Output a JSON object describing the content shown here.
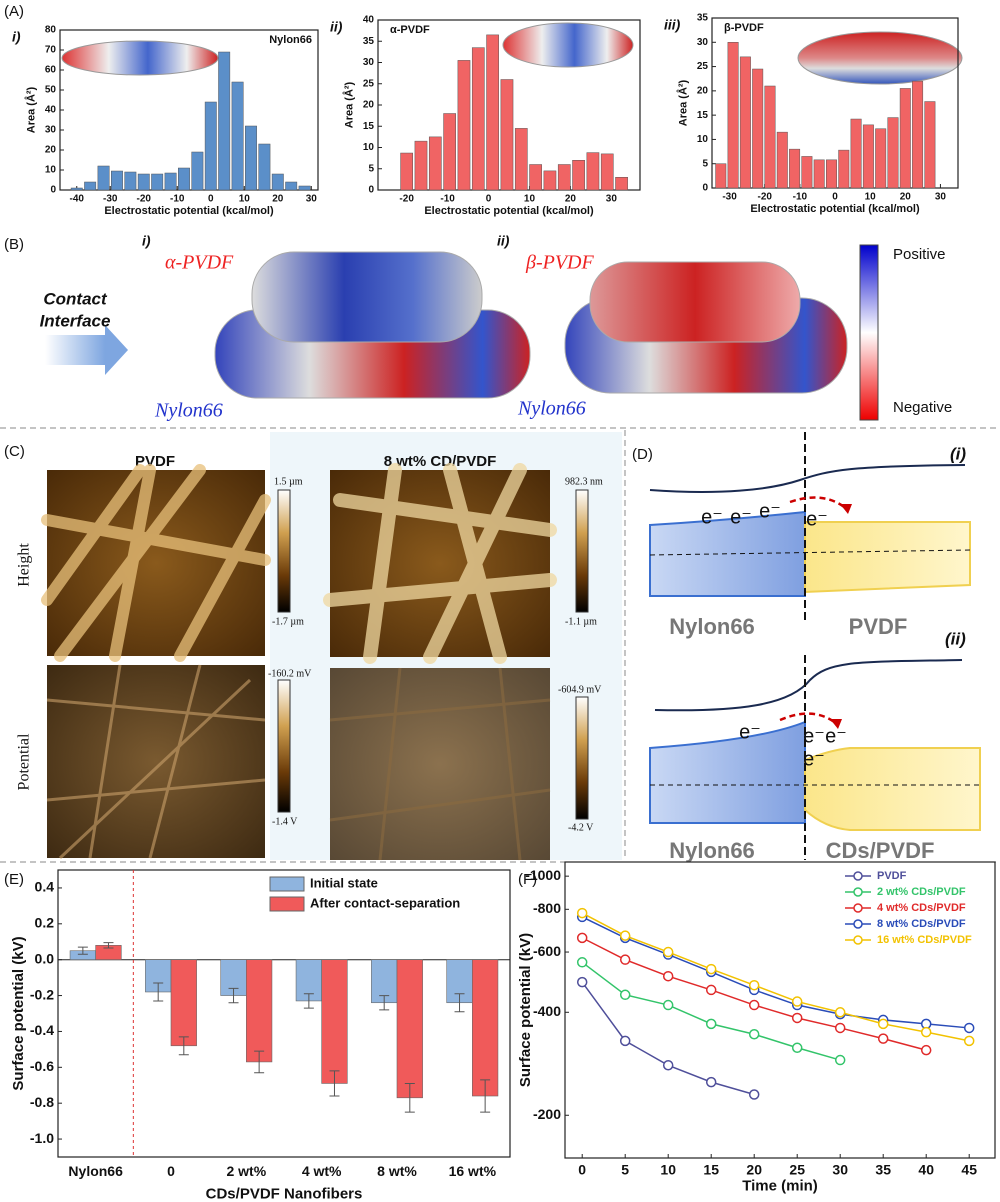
{
  "chart_data": [
    {
      "type": "bar",
      "label": "i)",
      "title": "Nylon66",
      "x": [
        -40,
        -36,
        -32,
        -28,
        -24,
        -20,
        -16,
        -12,
        -8,
        -4,
        0,
        4,
        8,
        12,
        16,
        20,
        24,
        28
      ],
      "values": [
        1,
        4,
        12,
        9.5,
        9,
        8,
        8,
        8.5,
        11,
        19,
        44,
        69,
        54,
        32,
        23,
        8,
        4,
        2
      ],
      "color": "#5b8fc9",
      "xlabel": "Electrostatic potential (kcal/mol)",
      "ylabel": "Area (Å²)",
      "xlim": [
        -45,
        32
      ],
      "ylim": [
        0,
        80
      ],
      "xticks": [
        -40,
        -30,
        -20,
        -10,
        0,
        10,
        20,
        30
      ],
      "yticks": [
        0,
        10,
        20,
        30,
        40,
        50,
        60,
        70,
        80
      ]
    },
    {
      "type": "bar",
      "label": "ii)",
      "title": "α-PVDF",
      "x": [
        -20,
        -16.5,
        -13,
        -9.5,
        -6,
        -2.5,
        1,
        4.5,
        8,
        11.5,
        15,
        18.5,
        22,
        25.5,
        29,
        32.5
      ],
      "values": [
        8.7,
        11.5,
        12.5,
        18,
        30.5,
        33.5,
        36.5,
        26,
        14.5,
        6,
        4.5,
        6,
        7,
        8.8,
        8.5,
        3
      ],
      "color": "#f06464",
      "xlabel": "Electrostatic potential (kcal/mol)",
      "ylabel": "Area (Å²)",
      "xlim": [
        -27,
        37
      ],
      "ylim": [
        0,
        40
      ],
      "xticks": [
        -20,
        -10,
        0,
        10,
        20,
        30
      ],
      "yticks": [
        0,
        5,
        10,
        15,
        20,
        25,
        30,
        35,
        40
      ]
    },
    {
      "type": "bar",
      "label": "iii)",
      "title": "β-PVDF",
      "x": [
        -32.5,
        -29,
        -25.5,
        -22,
        -18.5,
        -15,
        -11.5,
        -8,
        -4.5,
        -1,
        2.5,
        6,
        9.5,
        13,
        16.5,
        20,
        23.5,
        27
      ],
      "values": [
        5,
        30,
        27,
        24.5,
        21,
        11.5,
        8,
        6.5,
        5.8,
        5.8,
        7.8,
        14.2,
        13,
        12.2,
        14.5,
        20.5,
        22,
        17.8
      ],
      "color": "#f06464",
      "xlabel": "Electrostatic potential (kcal/mol)",
      "ylabel": "Area (Å²)",
      "xlim": [
        -35,
        35
      ],
      "ylim": [
        0,
        35
      ],
      "xticks": [
        -30,
        -20,
        -10,
        0,
        10,
        20,
        30
      ],
      "yticks": [
        0,
        5,
        10,
        15,
        20,
        25,
        30,
        35
      ]
    },
    {
      "type": "bar",
      "categories": [
        "Nylon66",
        "0",
        "2 wt%",
        "4 wt%",
        "8 wt%",
        "16 wt%"
      ],
      "series": [
        {
          "name": "Initial state",
          "color": "#8fb4de",
          "values": [
            0.05,
            -0.18,
            -0.2,
            -0.23,
            -0.24,
            -0.24
          ],
          "errors": [
            0.02,
            0.05,
            0.04,
            0.04,
            0.04,
            0.05
          ]
        },
        {
          "name": "After contact-separation",
          "color": "#f05a5a",
          "values": [
            0.08,
            -0.48,
            -0.57,
            -0.69,
            -0.77,
            -0.76
          ],
          "errors": [
            0.015,
            0.05,
            0.06,
            0.07,
            0.08,
            0.09
          ]
        }
      ],
      "xlabel": "CDs/PVDF Nanofibers",
      "ylabel": "Surface potential (kV)",
      "ylim": [
        -1.1,
        0.5
      ],
      "yticks": [
        {
          "value": -1,
          "label": "-1.0"
        },
        -0.8,
        -0.6,
        -0.4,
        -0.2,
        {
          "value": 0,
          "label": "0.0"
        },
        0.2,
        0.4
      ],
      "legend": "upper right"
    },
    {
      "type": "line",
      "x": [
        0,
        5,
        10,
        15,
        20,
        25,
        30,
        35,
        40,
        45
      ],
      "series": [
        {
          "name": "PVDF",
          "color": "#4f4f9a",
          "values": [
            -490,
            -330,
            -280,
            -250,
            -230,
            null,
            null,
            null,
            null,
            null
          ]
        },
        {
          "name": "2 wt% CDs/PVDF",
          "color": "#33c46a",
          "values": [
            -560,
            -450,
            -420,
            -370,
            -345,
            -315,
            -290,
            null,
            null,
            null
          ]
        },
        {
          "name": "4 wt% CDs/PVDF",
          "color": "#e02a2a",
          "values": [
            -660,
            -570,
            -510,
            -465,
            -420,
            -385,
            -360,
            -335,
            -310,
            null
          ]
        },
        {
          "name": "8 wt% CDs/PVDF",
          "color": "#2a4cb8",
          "values": [
            -760,
            -660,
            -590,
            -525,
            -465,
            -420,
            -395,
            -380,
            -370,
            -360
          ]
        },
        {
          "name": "16 wt% CDs/PVDF",
          "color": "#f2c200",
          "values": [
            -780,
            -670,
            -600,
            -535,
            -480,
            -430,
            -400,
            -370,
            -350,
            -330
          ]
        }
      ],
      "xlabel": "Time (min)",
      "ylabel": "Surface potential (kV)",
      "xlim": [
        -2,
        48
      ],
      "ylim": [
        -150,
        -1100
      ],
      "yscale": "log",
      "xticks": [
        0,
        5,
        10,
        15,
        20,
        25,
        30,
        35,
        40,
        45
      ],
      "yticks": [
        -200,
        -400,
        -600,
        -800,
        -1000
      ],
      "legend": "upper right"
    }
  ],
  "figure": {
    "panel_labels": [
      "(A)",
      "(B)",
      "(C)",
      "(D)",
      "(E)",
      "(F)"
    ],
    "B": {
      "caption": [
        "Contact",
        "Interface"
      ],
      "parts": [
        "i)",
        "ii)"
      ],
      "upper": [
        "α-PVDF",
        "β-PVDF"
      ],
      "lower": [
        "Nylon66",
        "Nylon66"
      ],
      "scale": [
        "Positive",
        "Negative"
      ]
    },
    "C": {
      "columns": [
        "PVDF",
        "8 wt% CD/PVDF"
      ],
      "rows": [
        "Height",
        "Potential"
      ],
      "scales": [
        [
          "1.5 µm",
          "-1.7 µm"
        ],
        [
          "982.3 nm",
          "-1.1 µm"
        ],
        [
          "-160.2 mV",
          "-1.4 V"
        ],
        [
          "-604.9 mV",
          "-4.2 V"
        ]
      ]
    },
    "D": {
      "parts": [
        {
          "label": "(i)",
          "left": "Nylon66",
          "right": "PVDF",
          "electrons": [
            "e⁻",
            "e⁻",
            "e⁻",
            "e⁻"
          ]
        },
        {
          "label": "(ii)",
          "left": "Nylon66",
          "right": "CDs/PVDF",
          "electrons": [
            "e⁻",
            "e⁻",
            "e⁻",
            "e⁻"
          ]
        }
      ]
    }
  }
}
